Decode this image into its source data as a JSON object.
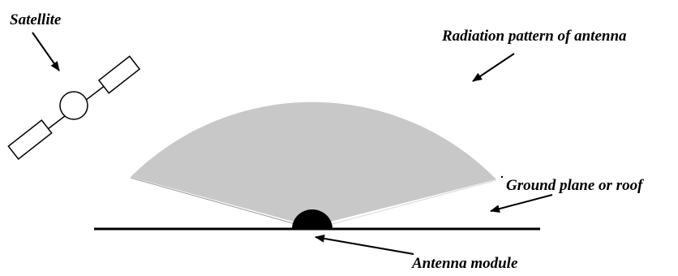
{
  "labels": {
    "satellite": "Satellite",
    "radiation_pattern": "Radiation pattern of antenna",
    "ground_plane": "Ground plane or roof",
    "antenna_module": "Antenna module"
  },
  "colors": {
    "radiation_fill": "#c8c8c8",
    "line": "#000000",
    "antenna_fill": "#000000",
    "background": "#ffffff"
  },
  "icons": {
    "satellite": "satellite-icon",
    "antenna": "antenna-dome-icon"
  }
}
